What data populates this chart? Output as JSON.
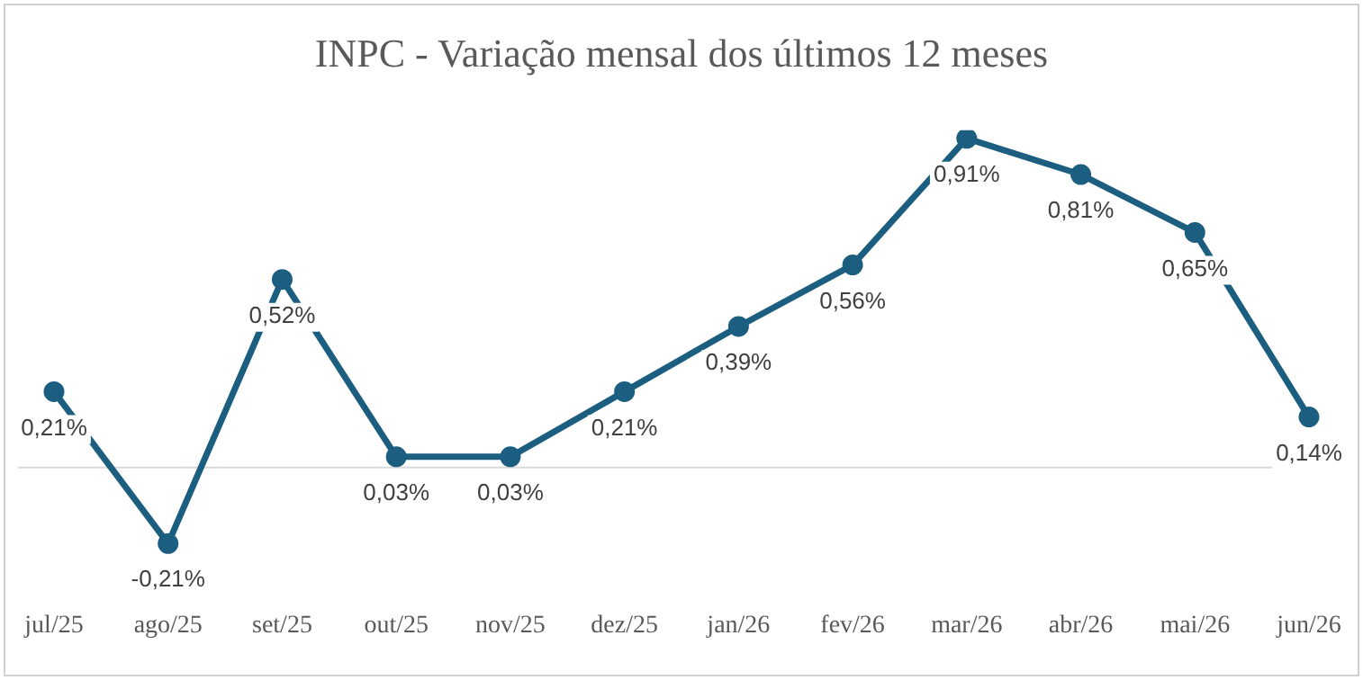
{
  "chart_data": {
    "type": "line",
    "title": "INPC - Variação mensal dos últimos 12 meses",
    "categories": [
      "jul/25",
      "ago/25",
      "set/25",
      "out/25",
      "nov/25",
      "dez/25",
      "jan/26",
      "fev/26",
      "mar/26",
      "abr/26",
      "mai/26",
      "jun/26"
    ],
    "values": [
      0.21,
      -0.21,
      0.52,
      0.03,
      0.03,
      0.21,
      0.39,
      0.56,
      0.91,
      0.81,
      0.65,
      0.14
    ],
    "value_labels": [
      "0,21%",
      "-0,21%",
      "0,52%",
      "0,03%",
      "0,03%",
      "0,21%",
      "0,39%",
      "0,56%",
      "0,91%",
      "0,81%",
      "0,65%",
      "0,14%"
    ],
    "color": "#1b5e80",
    "marker": "circle",
    "line_style": "solid",
    "grid": false,
    "legend": false,
    "ref_lines": [
      {
        "axis": "y",
        "value": 0,
        "color": "#d9d9d9"
      }
    ]
  }
}
